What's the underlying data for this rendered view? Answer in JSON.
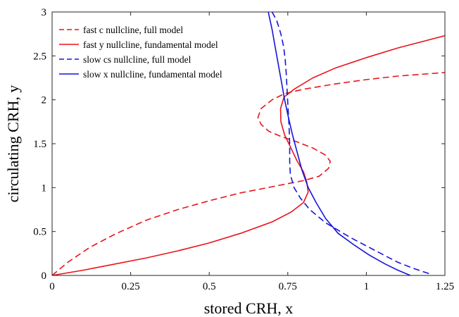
{
  "chart_data": {
    "type": "line",
    "xlabel": "stored CRH, x",
    "ylabel": "circulating CRH, y",
    "xlim": [
      0,
      1.25
    ],
    "ylim": [
      0,
      3
    ],
    "x_ticks": [
      0,
      0.25,
      0.5,
      0.75,
      1,
      1.25
    ],
    "x_tick_labels": [
      "0",
      "0.25",
      "0.5",
      "0.75",
      "1",
      "1.25"
    ],
    "y_ticks": [
      0,
      0.5,
      1,
      1.5,
      2,
      2.5,
      3
    ],
    "y_tick_labels": [
      "0",
      "0.5",
      "1",
      "1.5",
      "2",
      "2.5",
      "3"
    ],
    "grid": false,
    "legend_position": "top-left",
    "series": [
      {
        "name": "fast c nullcline, full model",
        "color": "#e8141b",
        "dash": "dashed",
        "points": [
          [
            0.0,
            0.0
          ],
          [
            0.05,
            0.15
          ],
          [
            0.12,
            0.32
          ],
          [
            0.2,
            0.47
          ],
          [
            0.3,
            0.63
          ],
          [
            0.4,
            0.75
          ],
          [
            0.5,
            0.85
          ],
          [
            0.6,
            0.94
          ],
          [
            0.7,
            1.01
          ],
          [
            0.8,
            1.08
          ],
          [
            0.85,
            1.13
          ],
          [
            0.88,
            1.22
          ],
          [
            0.885,
            1.3
          ],
          [
            0.87,
            1.37
          ],
          [
            0.83,
            1.45
          ],
          [
            0.78,
            1.52
          ],
          [
            0.73,
            1.58
          ],
          [
            0.69,
            1.64
          ],
          [
            0.665,
            1.72
          ],
          [
            0.655,
            1.8
          ],
          [
            0.665,
            1.9
          ],
          [
            0.7,
            2.0
          ],
          [
            0.74,
            2.07
          ],
          [
            0.8,
            2.12
          ],
          [
            0.9,
            2.18
          ],
          [
            1.0,
            2.23
          ],
          [
            1.1,
            2.27
          ],
          [
            1.25,
            2.31
          ]
        ]
      },
      {
        "name": "fast y nullcline, fundamental model",
        "color": "#e8141b",
        "dash": "solid",
        "points": [
          [
            0.0,
            0.0
          ],
          [
            0.1,
            0.06
          ],
          [
            0.2,
            0.13
          ],
          [
            0.3,
            0.2
          ],
          [
            0.4,
            0.28
          ],
          [
            0.5,
            0.37
          ],
          [
            0.6,
            0.48
          ],
          [
            0.7,
            0.61
          ],
          [
            0.76,
            0.72
          ],
          [
            0.8,
            0.83
          ],
          [
            0.815,
            0.95
          ],
          [
            0.81,
            1.07
          ],
          [
            0.8,
            1.18
          ],
          [
            0.78,
            1.3
          ],
          [
            0.76,
            1.45
          ],
          [
            0.74,
            1.6
          ],
          [
            0.728,
            1.75
          ],
          [
            0.727,
            1.9
          ],
          [
            0.738,
            2.03
          ],
          [
            0.77,
            2.12
          ],
          [
            0.83,
            2.25
          ],
          [
            0.9,
            2.36
          ],
          [
            1.0,
            2.48
          ],
          [
            1.1,
            2.59
          ],
          [
            1.25,
            2.73
          ]
        ]
      },
      {
        "name": "slow c_s nullcline, full model",
        "color": "#1414dc",
        "dash": "dashed",
        "points": [
          [
            0.7,
            3.0
          ],
          [
            0.715,
            2.9
          ],
          [
            0.728,
            2.75
          ],
          [
            0.737,
            2.6
          ],
          [
            0.742,
            2.45
          ],
          [
            0.745,
            2.3
          ],
          [
            0.748,
            2.1
          ],
          [
            0.751,
            1.9
          ],
          [
            0.754,
            1.7
          ],
          [
            0.756,
            1.5
          ],
          [
            0.756,
            1.3
          ],
          [
            0.758,
            1.15
          ],
          [
            0.77,
            1.0
          ],
          [
            0.79,
            0.88
          ],
          [
            0.82,
            0.75
          ],
          [
            0.87,
            0.6
          ],
          [
            0.95,
            0.43
          ],
          [
            1.03,
            0.28
          ],
          [
            1.1,
            0.15
          ],
          [
            1.15,
            0.08
          ],
          [
            1.2,
            0.02
          ]
        ]
      },
      {
        "name": "slow x nullcline, fundamental model",
        "color": "#1414dc",
        "dash": "solid",
        "points": [
          [
            0.688,
            3.0
          ],
          [
            0.7,
            2.8
          ],
          [
            0.71,
            2.6
          ],
          [
            0.72,
            2.4
          ],
          [
            0.73,
            2.2
          ],
          [
            0.74,
            2.0
          ],
          [
            0.752,
            1.8
          ],
          [
            0.765,
            1.6
          ],
          [
            0.78,
            1.4
          ],
          [
            0.795,
            1.2
          ],
          [
            0.815,
            1.0
          ],
          [
            0.84,
            0.83
          ],
          [
            0.87,
            0.65
          ],
          [
            0.91,
            0.48
          ],
          [
            0.96,
            0.35
          ],
          [
            1.01,
            0.23
          ],
          [
            1.06,
            0.13
          ],
          [
            1.1,
            0.06
          ],
          [
            1.14,
            0.0
          ]
        ]
      }
    ],
    "legend": [
      {
        "text": "fast c nullcline, full model",
        "color": "#e8141b",
        "dash": "dashed"
      },
      {
        "text": "fast y nullcline, fundamental model",
        "color": "#e8141b",
        "dash": "solid"
      },
      {
        "text": "slow cs nullcline, full model",
        "color": "#1414dc",
        "dash": "dashed"
      },
      {
        "text": "slow x nullcline, fundamental model",
        "color": "#1414dc",
        "dash": "solid"
      }
    ]
  }
}
